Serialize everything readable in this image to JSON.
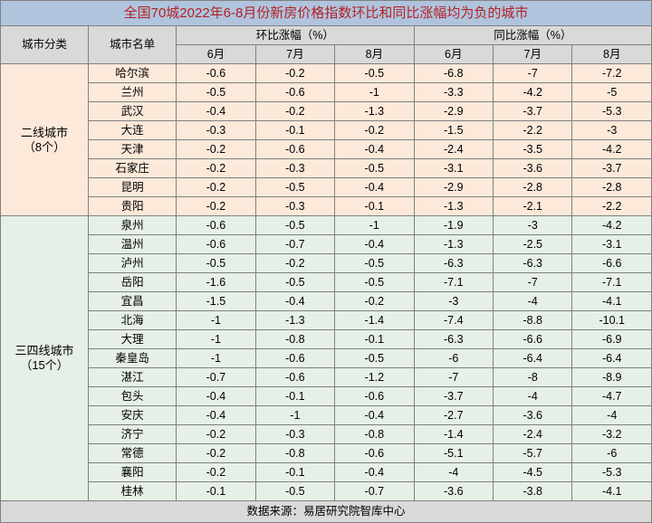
{
  "title": "全国70城2022年6-8月份新房价格指数环比和同比涨幅均为负的城市",
  "footer": "数据来源：易居研究院智库中心",
  "header": {
    "category": "城市分类",
    "cityList": "城市名单",
    "mom": "环比涨幅（%）",
    "yoy": "同比涨幅（%）",
    "m6": "6月",
    "m7": "7月",
    "m8": "8月"
  },
  "groups": [
    {
      "label": "二线城市\n（8个）",
      "class": "t2",
      "rows": [
        {
          "city": "哈尔滨",
          "v": [
            "-0.6",
            "-0.2",
            "-0.5",
            "-6.8",
            "-7",
            "-7.2"
          ]
        },
        {
          "city": "兰州",
          "v": [
            "-0.5",
            "-0.6",
            "-1",
            "-3.3",
            "-4.2",
            "-5"
          ]
        },
        {
          "city": "武汉",
          "v": [
            "-0.4",
            "-0.2",
            "-1.3",
            "-2.9",
            "-3.7",
            "-5.3"
          ]
        },
        {
          "city": "大连",
          "v": [
            "-0.3",
            "-0.1",
            "-0.2",
            "-1.5",
            "-2.2",
            "-3"
          ]
        },
        {
          "city": "天津",
          "v": [
            "-0.2",
            "-0.6",
            "-0.4",
            "-2.4",
            "-3.5",
            "-4.2"
          ]
        },
        {
          "city": "石家庄",
          "v": [
            "-0.2",
            "-0.3",
            "-0.5",
            "-3.1",
            "-3.6",
            "-3.7"
          ]
        },
        {
          "city": "昆明",
          "v": [
            "-0.2",
            "-0.5",
            "-0.4",
            "-2.9",
            "-2.8",
            "-2.8"
          ]
        },
        {
          "city": "贵阳",
          "v": [
            "-0.2",
            "-0.3",
            "-0.1",
            "-1.3",
            "-2.1",
            "-2.2"
          ]
        }
      ]
    },
    {
      "label": "三四线城市\n（15个）",
      "class": "t34",
      "rows": [
        {
          "city": "泉州",
          "v": [
            "-0.6",
            "-0.5",
            "-1",
            "-1.9",
            "-3",
            "-4.2"
          ]
        },
        {
          "city": "温州",
          "v": [
            "-0.6",
            "-0.7",
            "-0.4",
            "-1.3",
            "-2.5",
            "-3.1"
          ]
        },
        {
          "city": "泸州",
          "v": [
            "-0.5",
            "-0.2",
            "-0.5",
            "-6.3",
            "-6.3",
            "-6.6"
          ]
        },
        {
          "city": "岳阳",
          "v": [
            "-1.6",
            "-0.5",
            "-0.5",
            "-7.1",
            "-7",
            "-7.1"
          ]
        },
        {
          "city": "宜昌",
          "v": [
            "-1.5",
            "-0.4",
            "-0.2",
            "-3",
            "-4",
            "-4.1"
          ]
        },
        {
          "city": "北海",
          "v": [
            "-1",
            "-1.3",
            "-1.4",
            "-7.4",
            "-8.8",
            "-10.1"
          ]
        },
        {
          "city": "大理",
          "v": [
            "-1",
            "-0.8",
            "-0.1",
            "-6.3",
            "-6.6",
            "-6.9"
          ]
        },
        {
          "city": "秦皇岛",
          "v": [
            "-1",
            "-0.6",
            "-0.5",
            "-6",
            "-6.4",
            "-6.4"
          ]
        },
        {
          "city": "湛江",
          "v": [
            "-0.7",
            "-0.6",
            "-1.2",
            "-7",
            "-8",
            "-8.9"
          ]
        },
        {
          "city": "包头",
          "v": [
            "-0.4",
            "-0.1",
            "-0.6",
            "-3.7",
            "-4",
            "-4.7"
          ]
        },
        {
          "city": "安庆",
          "v": [
            "-0.4",
            "-1",
            "-0.4",
            "-2.7",
            "-3.6",
            "-4"
          ]
        },
        {
          "city": "济宁",
          "v": [
            "-0.2",
            "-0.3",
            "-0.8",
            "-1.4",
            "-2.4",
            "-3.2"
          ]
        },
        {
          "city": "常德",
          "v": [
            "-0.2",
            "-0.8",
            "-0.6",
            "-5.1",
            "-5.7",
            "-6"
          ]
        },
        {
          "city": "襄阳",
          "v": [
            "-0.2",
            "-0.1",
            "-0.4",
            "-4",
            "-4.5",
            "-5.3"
          ]
        },
        {
          "city": "桂林",
          "v": [
            "-0.1",
            "-0.5",
            "-0.7",
            "-3.6",
            "-3.8",
            "-4.1"
          ]
        }
      ]
    }
  ],
  "style": {
    "title_bg": "#b0c4de",
    "title_color": "#b22222",
    "header_bg": "#d9d9d9",
    "tier2_bg": "#fce9da",
    "tier34_bg": "#e6f0e6",
    "border_color": "#808080",
    "font_size_body": 12.5,
    "font_size_title": 15
  }
}
